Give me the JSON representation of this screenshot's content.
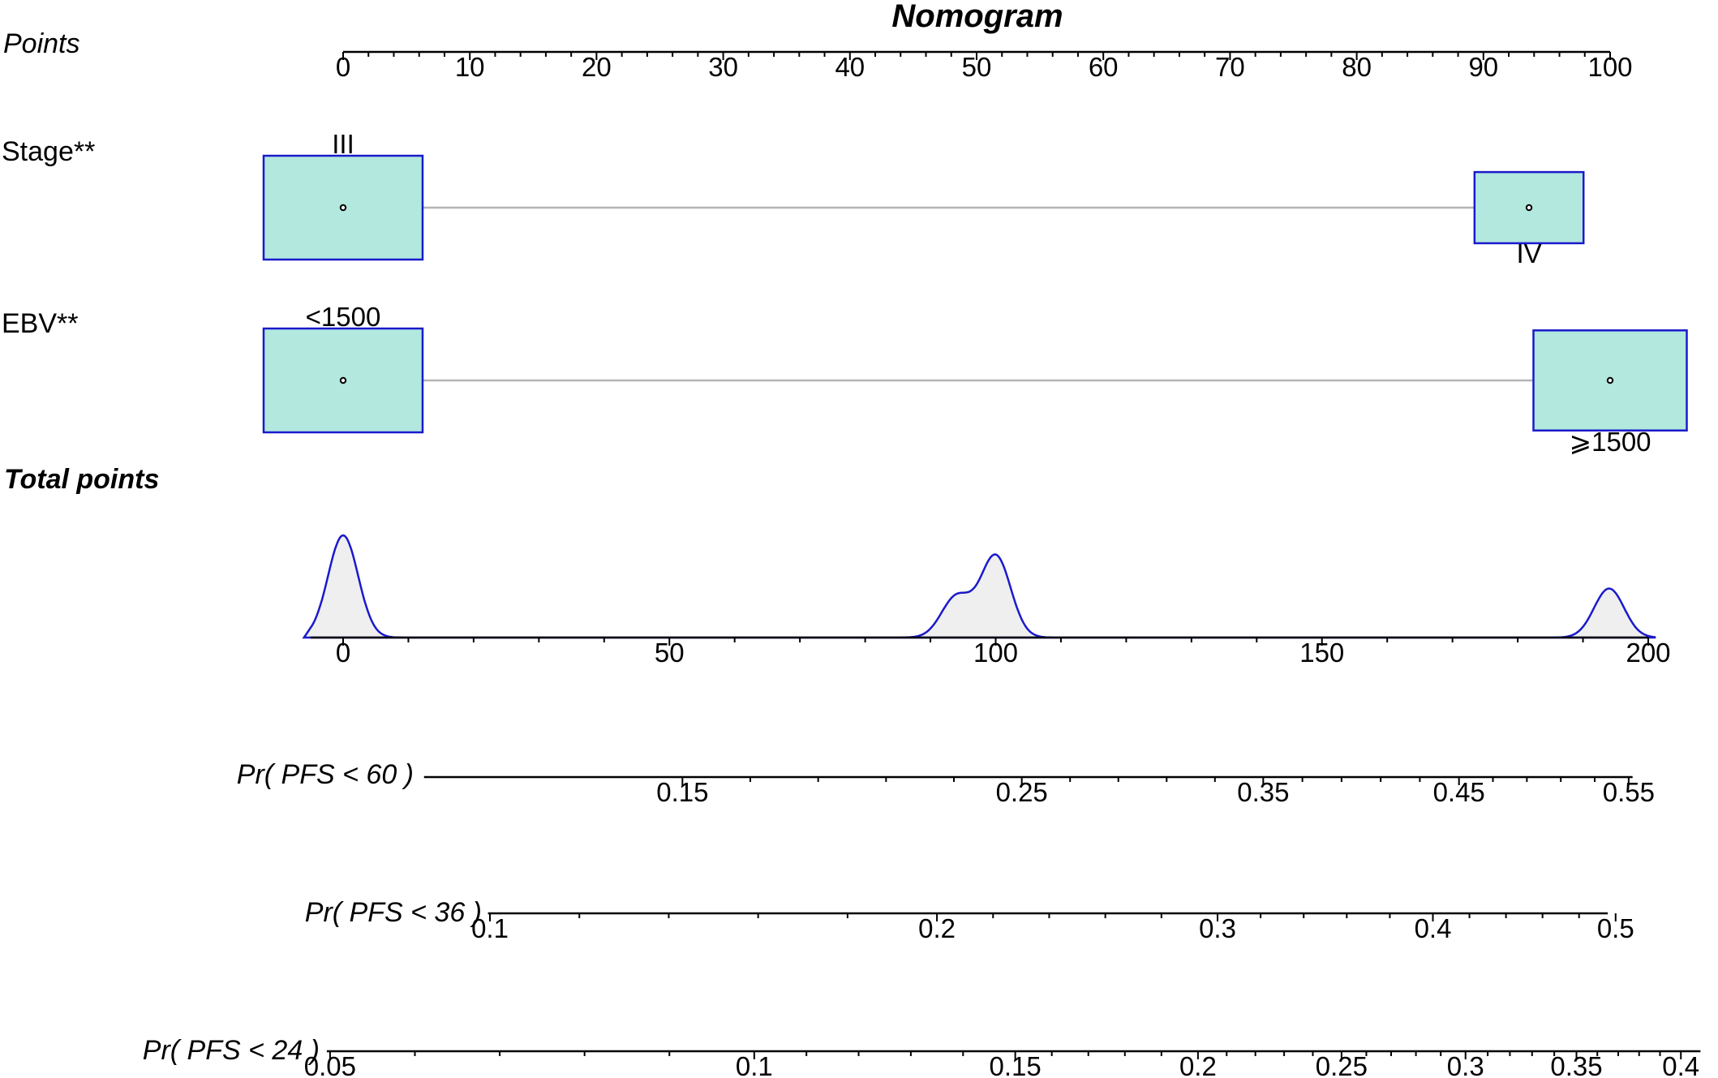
{
  "chart_data": {
    "type": "nomogram",
    "title": "Nomogram",
    "points_axis": {
      "label": "Points",
      "range": [
        0,
        100
      ],
      "ticks": [
        "0",
        "10",
        "20",
        "30",
        "40",
        "50",
        "60",
        "70",
        "80",
        "90",
        "100"
      ]
    },
    "predictors": [
      {
        "name": "Stage**",
        "levels": [
          {
            "label": "III",
            "points": 0,
            "relative_frequency": 1.0
          },
          {
            "label": "IV",
            "points": 93.6,
            "relative_frequency": 0.47
          }
        ]
      },
      {
        "name": "EBV**",
        "levels": [
          {
            "label": "<1500",
            "points": 0,
            "relative_frequency": 1.0
          },
          {
            "label": "⩾1500",
            "points": 100,
            "relative_frequency": 0.93
          }
        ]
      }
    ],
    "total_points": {
      "label": "Total points",
      "range": [
        0,
        200
      ],
      "ticks": [
        "0",
        "50",
        "100",
        "150",
        "200"
      ],
      "distribution": [
        {
          "center": 0,
          "relative_height": 1.0
        },
        {
          "center": 94,
          "relative_height": 0.4
        },
        {
          "center": 100,
          "relative_height": 0.8
        },
        {
          "center": 194,
          "relative_height": 0.48
        }
      ]
    },
    "probability_axes": [
      {
        "label": "Pr( PFS < 60 )",
        "total_points_range": [
          12.4,
          197.6
        ],
        "labeled_ticks": [
          {
            "label": "0.15",
            "total_points": 52
          },
          {
            "label": "0.25",
            "total_points": 104
          },
          {
            "label": "0.35",
            "total_points": 141
          },
          {
            "label": "0.45",
            "total_points": 171
          },
          {
            "label": "0.55",
            "total_points": 197
          }
        ]
      },
      {
        "label": "Pr( PFS < 36 )",
        "total_points_range": [
          22.2,
          193.8
        ],
        "labeled_ticks": [
          {
            "label": "0.1",
            "total_points": 22.5
          },
          {
            "label": "0.2",
            "total_points": 91
          },
          {
            "label": "0.3",
            "total_points": 134
          },
          {
            "label": "0.4",
            "total_points": 167
          },
          {
            "label": "0.5",
            "total_points": 195
          }
        ]
      },
      {
        "label": "Pr( PFS < 24 )",
        "total_points_range": [
          -2.5,
          208
        ],
        "labeled_ticks": [
          {
            "label": "0.05",
            "total_points": -2
          },
          {
            "label": "0.1",
            "total_points": 63
          },
          {
            "label": "0.15",
            "total_points": 103
          },
          {
            "label": "0.2",
            "total_points": 131
          },
          {
            "label": "0.25",
            "total_points": 153
          },
          {
            "label": "0.3",
            "total_points": 172
          },
          {
            "label": "0.35",
            "total_points": 189
          },
          {
            "label": "0.4",
            "total_points": 205
          }
        ]
      }
    ]
  }
}
